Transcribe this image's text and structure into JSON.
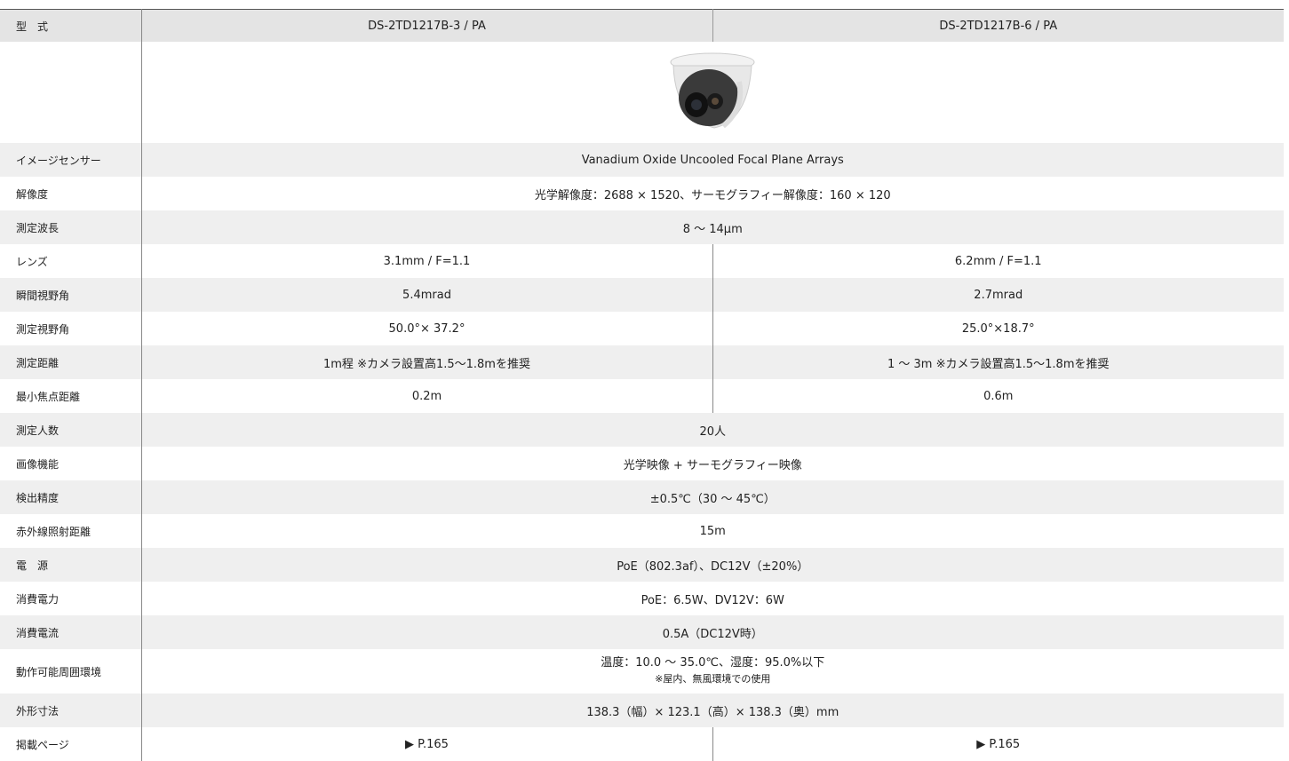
{
  "header": {
    "label": "型　式",
    "models": [
      "DS-2TD1217B-3 / PA",
      "DS-2TD1217B-6 / PA"
    ]
  },
  "rows": [
    {
      "label": "イメージセンサー",
      "cells": [
        "Vanadium Oxide Uncooled Focal Plane Arrays"
      ]
    },
    {
      "label": "解像度",
      "cells": [
        "光学解像度：2688 × 1520、サーモグラフィー解像度：160 × 120"
      ]
    },
    {
      "label": "測定波長",
      "cells": [
        "8 ～ 14μm"
      ]
    },
    {
      "label": "レンズ",
      "cells": [
        "3.1mm / F=1.1",
        "6.2mm / F=1.1"
      ]
    },
    {
      "label": "瞬間視野角",
      "cells": [
        "5.4mrad",
        "2.7mrad"
      ]
    },
    {
      "label": "測定視野角",
      "cells": [
        "50.0°× 37.2°",
        "25.0°×18.7°"
      ]
    },
    {
      "label": "測定距離",
      "cells": [
        "1m程 ※カメラ設置高1.5～1.8mを推奨",
        "1 ～ 3m ※カメラ設置高1.5～1.8mを推奨"
      ]
    },
    {
      "label": "最小焦点距離",
      "cells": [
        "0.2m",
        "0.6m"
      ]
    },
    {
      "label": "測定人数",
      "cells": [
        "20人"
      ]
    },
    {
      "label": "画像機能",
      "cells": [
        "光学映像 + サーモグラフィー映像"
      ]
    },
    {
      "label": "検出精度",
      "cells": [
        "±0.5℃（30 ～ 45℃）"
      ]
    },
    {
      "label": "赤外線照射距離",
      "cells": [
        "15m"
      ]
    },
    {
      "label": "電　源",
      "cells": [
        "PoE（802.3af）、DC12V（±20%）"
      ]
    },
    {
      "label": "消費電力",
      "cells": [
        "PoE：6.5W、DV12V：6W"
      ]
    },
    {
      "label": "消費電流",
      "cells": [
        "0.5A（DC12V時）"
      ]
    },
    {
      "label": "動作可能周囲環境",
      "lines": [
        "温度：10.0 ～ 35.0℃、湿度：95.0%以下",
        "※屋内、無風環境での使用"
      ]
    },
    {
      "label": "外形寸法",
      "cells": [
        "138.3（幅）× 123.1（高）× 138.3（奥）mm"
      ]
    },
    {
      "label": "掲載ページ",
      "cells": [
        "▶ P.165",
        "▶ P.165"
      ]
    }
  ]
}
